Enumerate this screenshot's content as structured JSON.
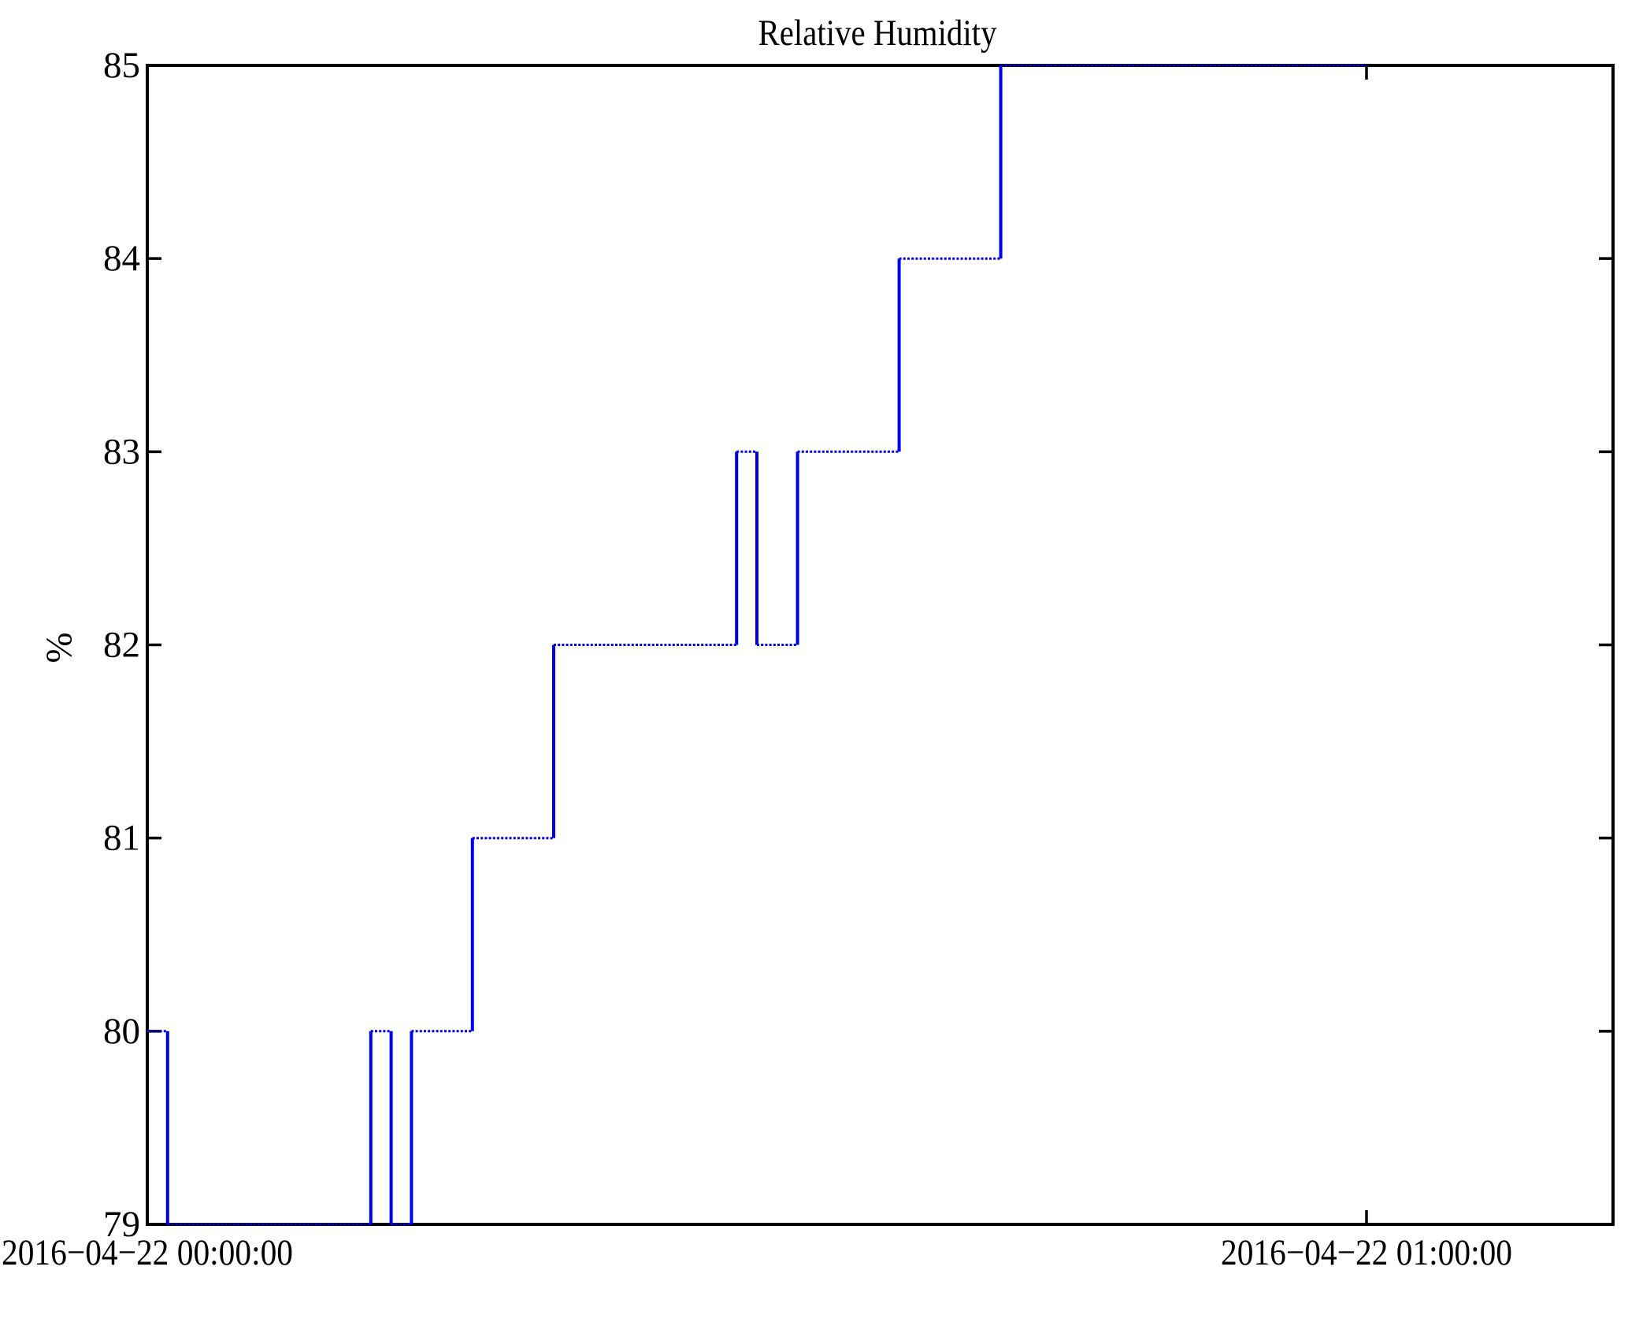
{
  "figure": {
    "background": "#ffffff",
    "text_color": "#000000",
    "axis_color": "#000000"
  },
  "chart_data": {
    "type": "line",
    "step": "post",
    "title": "Relative Humidity",
    "xlabel": "",
    "ylabel": "%",
    "grid": false,
    "box": true,
    "tick_direction": "in",
    "legend_position": "none",
    "line_color": "#0000ee",
    "ylim": [
      79,
      85
    ],
    "y_ticks": [
      79,
      80,
      81,
      82,
      83,
      84,
      85
    ],
    "xlim_minutes": [
      0,
      72.1
    ],
    "x_tick_minutes": [
      0,
      60
    ],
    "x_tick_labels": [
      "2016−04−22 00:00:00",
      "2016−04−22 01:00:00"
    ],
    "series": [
      {
        "name": "relative_humidity_percent",
        "sample_interval": "1 minute starting 2016-04-22 00:00:00",
        "values_by_minute": [
          80,
          79,
          79,
          79,
          79,
          79,
          79,
          79,
          79,
          79,
          79,
          80,
          79,
          80,
          80,
          80,
          81,
          81,
          81,
          81,
          82,
          82,
          82,
          82,
          82,
          82,
          82,
          82,
          82,
          83,
          82,
          82,
          83,
          83,
          83,
          83,
          83,
          84,
          84,
          84,
          84,
          84,
          85,
          85,
          85,
          85,
          85,
          85,
          85,
          85,
          85,
          85,
          85,
          85,
          85,
          85,
          85,
          85,
          85,
          85,
          85
        ]
      }
    ],
    "segments": [
      {
        "from": "00:00",
        "to": "00:01",
        "value": 80
      },
      {
        "from": "00:01",
        "to": "00:11",
        "value": 79
      },
      {
        "from": "00:11",
        "to": "00:12",
        "value": 80
      },
      {
        "from": "00:12",
        "to": "00:13",
        "value": 79
      },
      {
        "from": "00:13",
        "to": "00:16",
        "value": 80
      },
      {
        "from": "00:16",
        "to": "00:20",
        "value": 81
      },
      {
        "from": "00:20",
        "to": "00:29",
        "value": 82
      },
      {
        "from": "00:29",
        "to": "00:30",
        "value": 83
      },
      {
        "from": "00:30",
        "to": "00:32",
        "value": 82
      },
      {
        "from": "00:32",
        "to": "00:37",
        "value": 83
      },
      {
        "from": "00:37",
        "to": "00:42",
        "value": 84
      },
      {
        "from": "00:42",
        "to": "01:00",
        "value": 85
      }
    ]
  }
}
